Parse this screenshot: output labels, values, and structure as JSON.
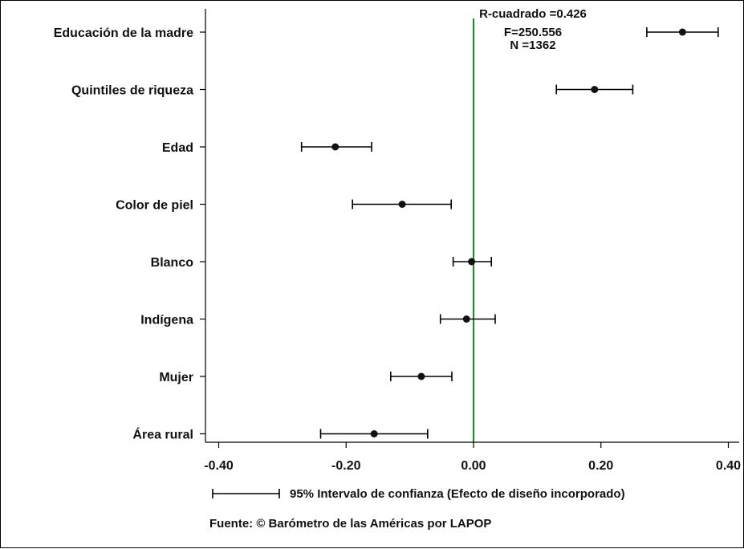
{
  "chart_data": {
    "type": "scatter",
    "subtype": "coefficient-plot",
    "xlim": [
      -0.42,
      0.42
    ],
    "x_ticks": [
      -0.4,
      -0.2,
      0.0,
      0.2,
      0.4
    ],
    "x_tick_labels": [
      "-0.40",
      "-0.20",
      "0.00",
      "0.20",
      "0.40"
    ],
    "reference_line": {
      "x": 0.0,
      "color": "#1a8a2a"
    },
    "grid": false,
    "categories": [
      "Educación de la madre",
      "Quintiles de riqueza",
      "Edad",
      "Color de piel",
      "Blanco",
      "Indígena",
      "Mujer",
      "Área rural"
    ],
    "estimates": [
      0.328,
      0.19,
      -0.217,
      -0.112,
      -0.003,
      -0.011,
      -0.082,
      -0.156
    ],
    "ci_low": [
      0.272,
      0.13,
      -0.27,
      -0.19,
      -0.032,
      -0.052,
      -0.13,
      -0.24
    ],
    "ci_high": [
      0.384,
      0.25,
      -0.16,
      -0.035,
      0.028,
      0.034,
      -0.034,
      -0.072
    ],
    "stats": [
      "R-cuadrado =0.426",
      "F=250.556",
      "N =1362"
    ],
    "legend": "95% Intervalo de confianza (Efecto de diseño incorporado)",
    "source": "Fuente: © Barómetro de las Américas por LAPOP"
  }
}
